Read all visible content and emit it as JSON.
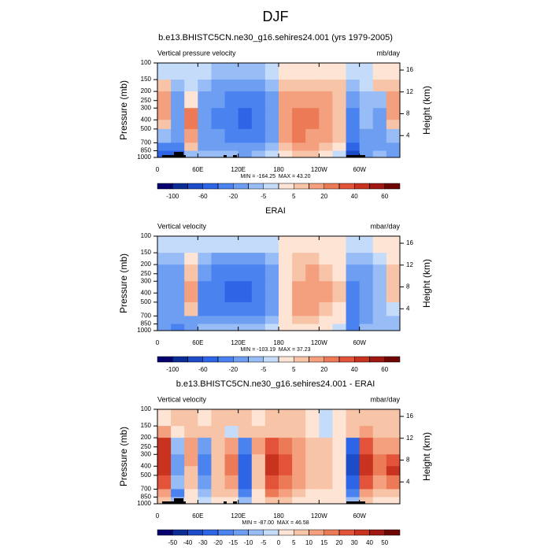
{
  "title": "DJF",
  "chart_data": [
    {
      "type": "contour",
      "title": "b.e13.BHISTC5CN.ne30_g16.sehires24.001 (yrs 1979-2005)",
      "left_label": "Vertical pressure velocity",
      "right_label": "mb/day",
      "ylabel": "Pressure (mb)",
      "y2label": "Height (km)",
      "stats": "MIN = -164.25  MAX = 43.20",
      "xlim": [
        0,
        360
      ],
      "xticks": [
        0,
        {
          "value": 60,
          "label": "60E"
        },
        {
          "value": 120,
          "label": "120E"
        },
        180,
        {
          "value": 240,
          "label": "120W"
        },
        {
          "value": 300,
          "label": "60W"
        }
      ],
      "ylim": [
        100,
        1000
      ],
      "ylog": true,
      "yticks": [
        100,
        150,
        200,
        250,
        300,
        400,
        500,
        700,
        850,
        1000
      ],
      "y2lim": [
        17.3,
        0
      ],
      "y2ticks": [
        4,
        8,
        12,
        16
      ],
      "xbins": [
        0,
        20,
        40,
        60,
        80,
        100,
        120,
        140,
        160,
        180,
        200,
        220,
        240,
        260,
        280,
        300,
        320,
        340,
        360
      ],
      "ybins": [
        100,
        150,
        200,
        300,
        400,
        500,
        700,
        850,
        1000
      ],
      "z": [
        [
          -5,
          -5,
          -5,
          -5,
          -10,
          -10,
          -10,
          -10,
          -5,
          3,
          3,
          3,
          3,
          3,
          -5,
          -5,
          3,
          3
        ],
        [
          5,
          -10,
          -5,
          -10,
          -20,
          -20,
          -20,
          -20,
          -10,
          5,
          5,
          5,
          5,
          5,
          -10,
          -5,
          5,
          5
        ],
        [
          10,
          -20,
          0,
          -20,
          -20,
          -40,
          -40,
          -40,
          -20,
          10,
          15,
          15,
          10,
          5,
          -20,
          -10,
          -10,
          10
        ],
        [
          10,
          -20,
          20,
          -20,
          -40,
          -40,
          -60,
          -40,
          -20,
          15,
          20,
          20,
          15,
          5,
          -40,
          -10,
          -20,
          10
        ],
        [
          5,
          -20,
          20,
          -20,
          -40,
          -40,
          -60,
          -40,
          -20,
          15,
          20,
          20,
          15,
          5,
          -40,
          -10,
          -20,
          5
        ],
        [
          -10,
          -20,
          10,
          -20,
          -20,
          -40,
          -40,
          -40,
          -20,
          10,
          20,
          15,
          10,
          5,
          -40,
          -20,
          -20,
          -10
        ],
        [
          -40,
          -40,
          5,
          -20,
          -20,
          -20,
          -20,
          -20,
          -10,
          5,
          10,
          10,
          5,
          0,
          -60,
          -20,
          -20,
          -20
        ],
        [
          -60,
          -60,
          -10,
          -10,
          -10,
          -10,
          -20,
          -10,
          -5,
          0,
          5,
          5,
          0,
          -5,
          -80,
          -20,
          -10,
          -20
        ]
      ],
      "levels": [
        -100,
        -80,
        -60,
        -40,
        -20,
        -10,
        -5,
        0,
        5,
        10,
        20,
        30,
        40,
        50,
        60
      ],
      "colors": [
        "#05006e",
        "#0a2d96",
        "#1e4bc8",
        "#2e64e6",
        "#4a82f0",
        "#6e9ef2",
        "#98bcf5",
        "#c4dcfa",
        "#fde4d4",
        "#f8c4a8",
        "#f4a07e",
        "#ec7a56",
        "#e2533a",
        "#c8321e",
        "#a01812",
        "#6e0606"
      ]
    },
    {
      "type": "contour",
      "title": "ERAI",
      "left_label": "Vertical velocity",
      "right_label": "mbar/day",
      "ylabel": "Pressure (mb)",
      "y2label": "Height (km)",
      "stats": "MIN = -103.19  MAX = 37.23",
      "xlim": [
        0,
        360
      ],
      "xticks": [
        0,
        {
          "value": 60,
          "label": "60E"
        },
        {
          "value": 120,
          "label": "120E"
        },
        180,
        {
          "value": 240,
          "label": "120W"
        },
        {
          "value": 300,
          "label": "60W"
        }
      ],
      "ylim": [
        100,
        1000
      ],
      "ylog": true,
      "yticks": [
        100,
        150,
        200,
        250,
        300,
        400,
        500,
        700,
        850,
        1000
      ],
      "y2lim": [
        17.3,
        0
      ],
      "y2ticks": [
        4,
        8,
        12,
        16
      ],
      "xbins": [
        0,
        20,
        40,
        60,
        80,
        100,
        120,
        140,
        160,
        180,
        200,
        220,
        240,
        260,
        280,
        300,
        320,
        340,
        360
      ],
      "ybins": [
        100,
        150,
        200,
        300,
        400,
        500,
        700,
        850,
        1000
      ],
      "z": [
        [
          -5,
          -5,
          -5,
          -5,
          -5,
          -5,
          -5,
          -5,
          -5,
          0,
          3,
          3,
          3,
          3,
          -5,
          -5,
          3,
          3
        ],
        [
          -10,
          -10,
          3,
          -10,
          -20,
          -20,
          -20,
          -20,
          -10,
          3,
          5,
          5,
          3,
          3,
          -10,
          -10,
          -5,
          3
        ],
        [
          -20,
          -20,
          5,
          -20,
          -40,
          -40,
          -40,
          -40,
          -20,
          3,
          5,
          10,
          5,
          3,
          -20,
          -20,
          -10,
          5
        ],
        [
          -20,
          -20,
          10,
          -40,
          -40,
          -60,
          -60,
          -40,
          -20,
          3,
          10,
          10,
          10,
          5,
          -40,
          -20,
          -10,
          5
        ],
        [
          -20,
          -20,
          10,
          -40,
          -40,
          -60,
          -60,
          -40,
          -20,
          3,
          10,
          10,
          10,
          5,
          -40,
          -20,
          -10,
          5
        ],
        [
          -20,
          -20,
          5,
          -40,
          -40,
          -40,
          -40,
          -40,
          -20,
          0,
          10,
          10,
          5,
          3,
          -40,
          -20,
          -10,
          -5
        ],
        [
          -20,
          -20,
          -20,
          -20,
          -20,
          -20,
          -20,
          -20,
          -10,
          0,
          5,
          5,
          3,
          0,
          -40,
          -20,
          -10,
          -10
        ],
        [
          -20,
          -40,
          -20,
          -10,
          -10,
          -10,
          -10,
          -10,
          -5,
          0,
          3,
          3,
          0,
          -5,
          -40,
          -10,
          -10,
          -10
        ]
      ],
      "levels": [
        -100,
        -80,
        -60,
        -40,
        -20,
        -10,
        -5,
        0,
        5,
        10,
        20,
        30,
        40,
        50,
        60
      ],
      "colors": [
        "#05006e",
        "#0a2d96",
        "#1e4bc8",
        "#2e64e6",
        "#4a82f0",
        "#6e9ef2",
        "#98bcf5",
        "#c4dcfa",
        "#fde4d4",
        "#f8c4a8",
        "#f4a07e",
        "#ec7a56",
        "#e2533a",
        "#c8321e",
        "#a01812",
        "#6e0606"
      ]
    },
    {
      "type": "contour",
      "title": "b.e13.BHISTC5CN.ne30_g16.sehires24.001 - ERAI",
      "left_label": "Vertical velocity",
      "right_label": "mbar/day",
      "ylabel": "Pressure (mb)",
      "y2label": "Height (km)",
      "stats": "MIN = -87.00  MAX = 46.58",
      "xlim": [
        0,
        360
      ],
      "xticks": [
        0,
        {
          "value": 60,
          "label": "60E"
        },
        {
          "value": 120,
          "label": "120E"
        },
        180,
        {
          "value": 240,
          "label": "120W"
        },
        {
          "value": 300,
          "label": "60W"
        }
      ],
      "ylim": [
        100,
        1000
      ],
      "ylog": true,
      "yticks": [
        100,
        150,
        200,
        250,
        300,
        400,
        500,
        700,
        850,
        1000
      ],
      "y2lim": [
        17.3,
        0
      ],
      "y2ticks": [
        4,
        8,
        12,
        16
      ],
      "xbins": [
        0,
        20,
        40,
        60,
        80,
        100,
        120,
        140,
        160,
        180,
        200,
        220,
        240,
        260,
        280,
        300,
        320,
        340,
        360
      ],
      "ybins": [
        100,
        150,
        200,
        300,
        400,
        500,
        700,
        850,
        1000
      ],
      "z": [
        [
          0,
          5,
          5,
          0,
          5,
          5,
          5,
          0,
          5,
          5,
          5,
          0,
          -5,
          0,
          5,
          5,
          5,
          5
        ],
        [
          10,
          0,
          5,
          5,
          5,
          -5,
          5,
          5,
          5,
          5,
          5,
          0,
          -5,
          0,
          5,
          10,
          5,
          5
        ],
        [
          30,
          -10,
          10,
          -15,
          5,
          10,
          -20,
          10,
          20,
          15,
          10,
          5,
          5,
          0,
          -30,
          20,
          10,
          10
        ],
        [
          30,
          -15,
          10,
          -20,
          5,
          15,
          -30,
          5,
          30,
          20,
          10,
          5,
          5,
          0,
          -40,
          30,
          15,
          20
        ],
        [
          30,
          -15,
          5,
          -20,
          5,
          15,
          -30,
          5,
          30,
          20,
          10,
          5,
          5,
          0,
          -40,
          30,
          15,
          30
        ],
        [
          20,
          -10,
          5,
          -15,
          5,
          10,
          -30,
          5,
          20,
          15,
          10,
          5,
          5,
          0,
          -30,
          20,
          10,
          15
        ],
        [
          10,
          -20,
          0,
          -10,
          5,
          5,
          -20,
          0,
          15,
          10,
          5,
          0,
          0,
          0,
          -20,
          10,
          5,
          5
        ],
        [
          5,
          -10,
          0,
          -5,
          0,
          0,
          -10,
          0,
          5,
          5,
          0,
          0,
          0,
          0,
          -10,
          5,
          0,
          0
        ]
      ],
      "levels": [
        -50,
        -40,
        -30,
        -20,
        -15,
        -10,
        -5,
        0,
        5,
        10,
        15,
        20,
        30,
        40,
        50
      ],
      "colors": [
        "#05006e",
        "#0a2d96",
        "#1e4bc8",
        "#2e64e6",
        "#4a82f0",
        "#6e9ef2",
        "#98bcf5",
        "#c4dcfa",
        "#fde4d4",
        "#f8c4a8",
        "#f4a07e",
        "#ec7a56",
        "#e2533a",
        "#c8321e",
        "#a01812",
        "#6e0606"
      ]
    }
  ]
}
